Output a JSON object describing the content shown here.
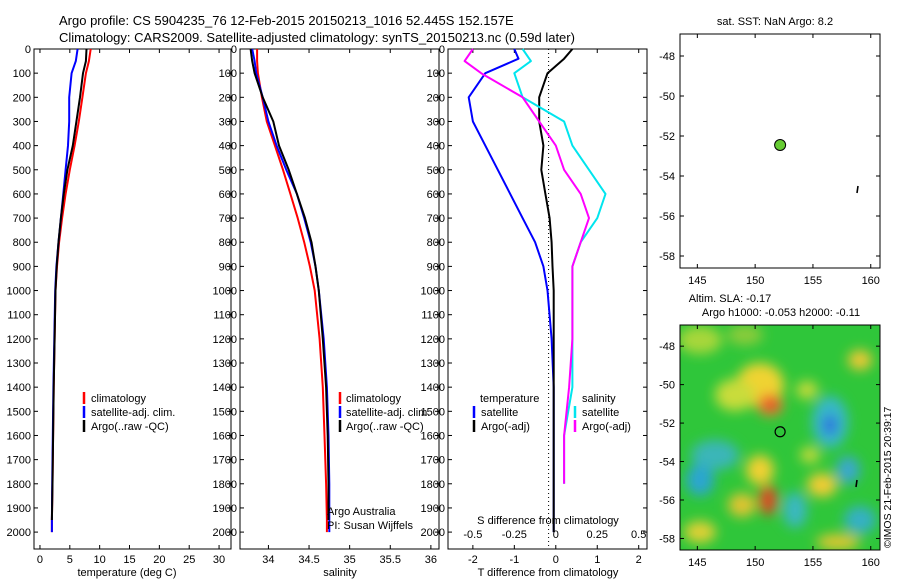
{
  "header": {
    "line1": "Argo profile: CS 5904235_76 12-Feb-2015 20150213_1016 52.445S 152.157E",
    "line2": "Climatology: CARS2009. Satellite-adjusted climatology: synTS_20150213.nc (0.59d later)"
  },
  "colors": {
    "climatology": "#ff0000",
    "satellite": "#0000ff",
    "argo": "#000000",
    "sat_salinity": "#00e5ee",
    "argo_salinity_diff": "#ff00ff",
    "marker": "#66cc33"
  },
  "depth_ticks": [
    "0",
    "100",
    "200",
    "300",
    "400",
    "500",
    "600",
    "700",
    "800",
    "900",
    "1000",
    "1100",
    "1200",
    "1300",
    "1400",
    "1500",
    "1600",
    "1700",
    "1800",
    "1900",
    "2000"
  ],
  "chart_data": [
    {
      "type": "line",
      "title": "",
      "xlabel": "temperature (deg C)",
      "ylabel": "",
      "xlim": [
        -1,
        32
      ],
      "ylim": [
        2070,
        0
      ],
      "xticks": [
        "0",
        "5",
        "10",
        "15",
        "20",
        "25",
        "30"
      ],
      "legend": [
        "climatology",
        "satellite-adj. clim.",
        "Argo(..raw -QC)"
      ],
      "series": [
        {
          "name": "climatology",
          "x": [
            8.5,
            8.2,
            7.7,
            7.1,
            6.5,
            5.8,
            5.0,
            4.3,
            3.7,
            3.2,
            2.85,
            2.6,
            2.45,
            2.3,
            2.2,
            2.1,
            2.0,
            2.0
          ],
          "y": [
            0,
            50,
            100,
            200,
            300,
            400,
            500,
            600,
            700,
            800,
            900,
            1000,
            1200,
            1400,
            1600,
            1800,
            1950,
            2000
          ]
        },
        {
          "name": "satellite-adj. clim.",
          "x": [
            6.3,
            6.0,
            5.3,
            4.9,
            4.9,
            4.7,
            4.3,
            3.9,
            3.5,
            3.1,
            2.75,
            2.55,
            2.4,
            2.25,
            2.15,
            2.05,
            2.0,
            2.0
          ],
          "y": [
            0,
            50,
            100,
            200,
            300,
            400,
            500,
            600,
            700,
            800,
            900,
            1000,
            1200,
            1400,
            1600,
            1800,
            1950,
            2000
          ]
        },
        {
          "name": "Argo(..raw -QC)",
          "x": [
            7.8,
            7.7,
            7.2,
            6.7,
            6.1,
            5.5,
            4.6,
            4.0,
            3.5,
            3.1,
            2.8,
            2.6,
            2.45,
            2.3,
            2.2,
            2.1,
            2.0
          ],
          "y": [
            0,
            50,
            100,
            200,
            300,
            400,
            500,
            600,
            700,
            800,
            900,
            1000,
            1200,
            1400,
            1600,
            1800,
            1950
          ]
        }
      ]
    },
    {
      "type": "line",
      "title": "",
      "xlabel": "salinity",
      "ylabel": "",
      "xlim": [
        33.65,
        36.1
      ],
      "ylim": [
        2070,
        0
      ],
      "xticks": [
        "34",
        "34.5",
        "35",
        "35.5",
        "36"
      ],
      "legend": [
        "climatology",
        "satellite-adj. clim.",
        "Argo(..raw -QC)"
      ],
      "annotation": [
        "Argo Australia",
        "PI: Susan Wijffels"
      ],
      "series": [
        {
          "name": "climatology",
          "x": [
            33.86,
            33.86,
            33.87,
            33.92,
            33.98,
            34.08,
            34.18,
            34.27,
            34.36,
            34.44,
            34.51,
            34.57,
            34.63,
            34.67,
            34.69,
            34.71,
            34.72,
            34.72
          ],
          "y": [
            0,
            50,
            100,
            200,
            300,
            400,
            500,
            600,
            700,
            800,
            900,
            1000,
            1200,
            1400,
            1600,
            1800,
            1950,
            2000
          ]
        },
        {
          "name": "satellite-adj. clim.",
          "x": [
            33.8,
            33.83,
            33.85,
            33.93,
            34.0,
            34.1,
            34.22,
            34.35,
            34.44,
            34.52,
            34.58,
            34.62,
            34.68,
            34.72,
            34.74,
            34.75,
            34.75,
            34.75
          ],
          "y": [
            0,
            50,
            100,
            200,
            300,
            400,
            500,
            600,
            700,
            800,
            900,
            1000,
            1200,
            1400,
            1600,
            1800,
            1950,
            2000
          ]
        },
        {
          "name": "Argo(..raw -QC)",
          "x": [
            33.78,
            33.8,
            33.83,
            33.93,
            34.06,
            34.13,
            34.25,
            34.35,
            34.45,
            34.53,
            34.58,
            34.62,
            34.67,
            34.71,
            34.73,
            34.74,
            34.74
          ],
          "y": [
            0,
            50,
            100,
            200,
            300,
            400,
            500,
            600,
            700,
            800,
            900,
            1000,
            1200,
            1400,
            1600,
            1800,
            1950
          ]
        }
      ]
    },
    {
      "type": "line",
      "title": "",
      "xlabel": "T difference from climatology",
      "xlabel2": "S difference from climatology",
      "xlim": [
        -2.6,
        2.2
      ],
      "ylim": [
        2070,
        0
      ],
      "xticks": [
        "-2",
        "-1",
        "0",
        "1",
        "2"
      ],
      "xticks_salinity": [
        "-0.5",
        "-0.25",
        "0",
        "0.25",
        "0.5"
      ],
      "legend_temperature": [
        "temperature",
        "satellite",
        "Argo(-adj)"
      ],
      "legend_salinity": [
        "salinity",
        "satellite",
        "Argo(-adj)"
      ],
      "series": [
        {
          "name": "temperature satellite",
          "x": [
            -1.0,
            -0.9,
            -1.7,
            -2.1,
            -2.0,
            -1.7,
            -1.4,
            -1.1,
            -0.8,
            -0.5,
            -0.3,
            -0.2,
            -0.1,
            -0.05,
            -0.05,
            -0.05,
            -0.05,
            -0.05
          ],
          "y": [
            0,
            40,
            100,
            200,
            300,
            400,
            500,
            600,
            700,
            800,
            900,
            1000,
            1200,
            1400,
            1600,
            1800,
            1950,
            2000
          ]
        },
        {
          "name": "temperature Argo(-adj)",
          "x": [
            0.4,
            0.2,
            -0.2,
            -0.4,
            -0.4,
            -0.3,
            -0.35,
            -0.25,
            -0.15,
            -0.1,
            -0.08,
            -0.05,
            -0.05,
            -0.05,
            -0.05,
            -0.05,
            -0.05,
            -0.05
          ],
          "y": [
            0,
            40,
            100,
            200,
            300,
            400,
            500,
            600,
            700,
            800,
            900,
            1000,
            1200,
            1400,
            1600,
            1800,
            1950,
            2000
          ]
        },
        {
          "name": "salinity satellite",
          "x": [
            -0.2,
            -0.15,
            -0.25,
            -0.2,
            0.05,
            0.1,
            0.2,
            0.3,
            0.25,
            0.15,
            0.1,
            0.1,
            0.1,
            0.1,
            0.05,
            0.05
          ],
          "y": [
            0,
            50,
            100,
            200,
            300,
            400,
            500,
            600,
            700,
            800,
            900,
            1000,
            1200,
            1400,
            1600,
            1800
          ]
        },
        {
          "name": "salinity Argo(-adj)",
          "x": [
            -0.5,
            -0.55,
            -0.45,
            -0.2,
            -0.1,
            0.0,
            0.05,
            0.15,
            0.2,
            0.15,
            0.1,
            0.1,
            0.1,
            0.08,
            0.05,
            0.05
          ],
          "y": [
            0,
            50,
            100,
            200,
            300,
            400,
            500,
            600,
            700,
            800,
            900,
            1000,
            1200,
            1400,
            1600,
            1800
          ]
        }
      ]
    },
    {
      "type": "scatter",
      "title": "sat. SST: NaN Argo: 8.2",
      "xlim": [
        143.5,
        160.8
      ],
      "ylim": [
        -58.6,
        -46.9
      ],
      "xticks": [
        "145",
        "150",
        "155",
        "160"
      ],
      "yticks": [
        "-48",
        "-50",
        "-52",
        "-54",
        "-56",
        "-58"
      ],
      "points": [
        {
          "x": 152.16,
          "y": -52.45,
          "label": "Argo float"
        }
      ]
    },
    {
      "type": "heatmap",
      "title": "Altim. SLA: -0.17",
      "subtitle": "Argo h1000: -0.053 h2000: -0.11",
      "xlim": [
        143.5,
        160.8
      ],
      "ylim": [
        -58.6,
        -46.9
      ],
      "xticks": [
        "145",
        "150",
        "155",
        "160"
      ],
      "yticks": [
        "-48",
        "-50",
        "-52",
        "-54",
        "-56",
        "-58"
      ],
      "points": [
        {
          "x": 152.16,
          "y": -52.45,
          "label": "Argo float"
        }
      ]
    }
  ],
  "watermark": "©IMOS 21-Feb-2015 20:39:17"
}
